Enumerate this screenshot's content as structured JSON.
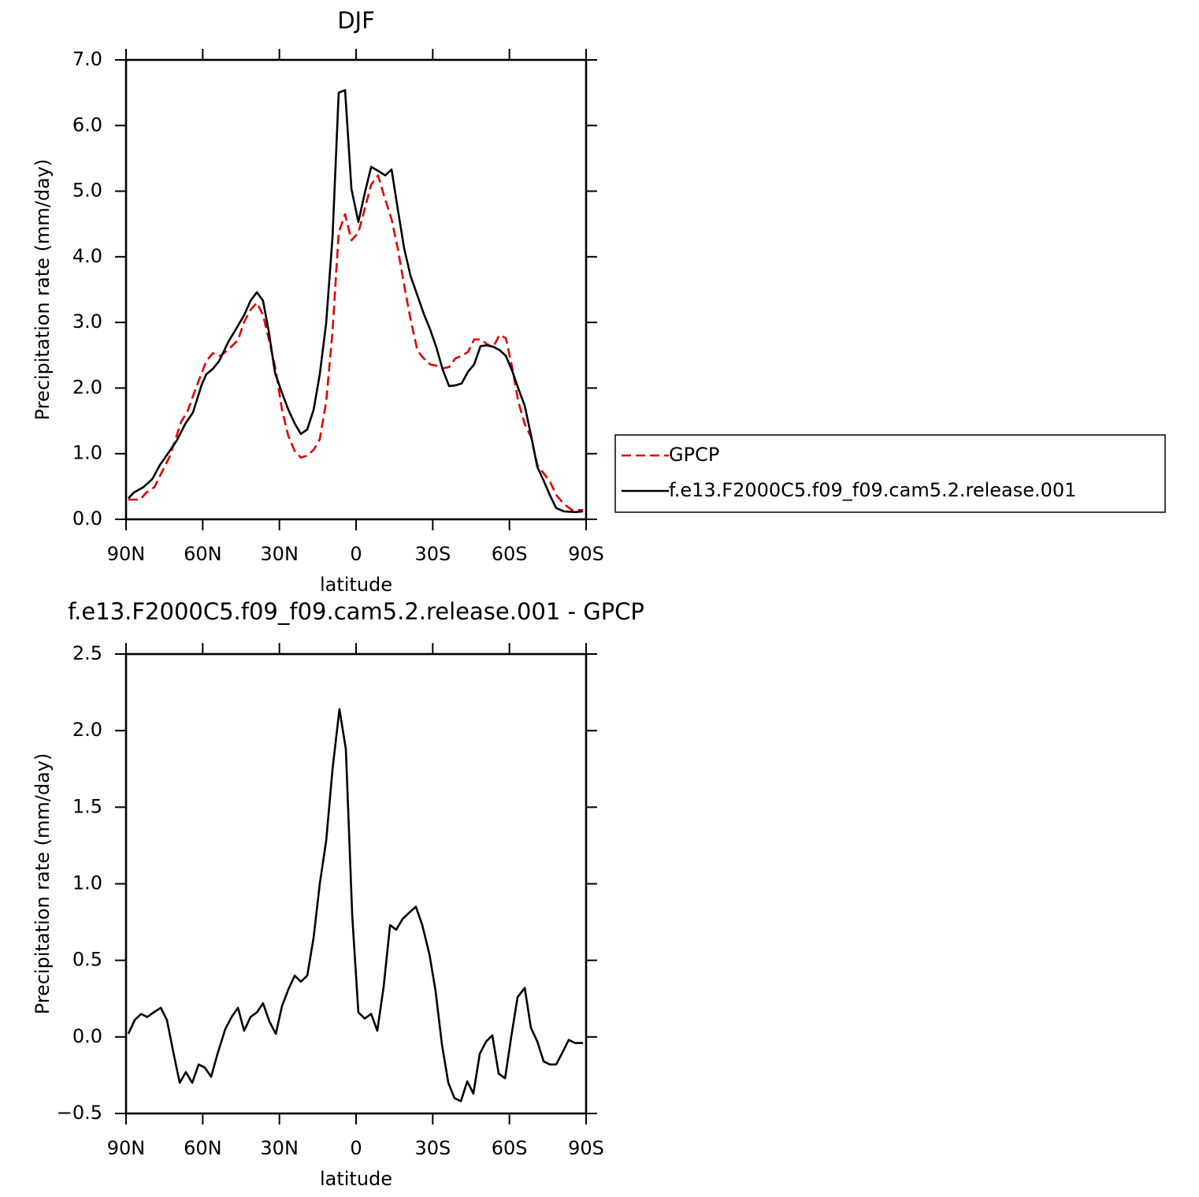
{
  "chart_data": [
    {
      "type": "line",
      "title": "DJF",
      "x_label": "latitude",
      "y_label": "Precipitation rate (mm/day)",
      "xlim": [
        90,
        -90
      ],
      "xticks": [
        {
          "value": 90,
          "label": "90N"
        },
        {
          "value": 60,
          "label": "60N"
        },
        {
          "value": 30,
          "label": "30N"
        },
        0,
        {
          "value": -30,
          "label": "30S"
        },
        {
          "value": -60,
          "label": "60S"
        },
        {
          "value": -90,
          "label": "90S"
        }
      ],
      "ylim": [
        0,
        7
      ],
      "yticks": [
        {
          "value": 0,
          "label": "0.0"
        },
        {
          "value": 1,
          "label": "1.0"
        },
        {
          "value": 2,
          "label": "2.0"
        },
        {
          "value": 3,
          "label": "3.0"
        },
        {
          "value": 4,
          "label": "4.0"
        },
        {
          "value": 5,
          "label": "5.0"
        },
        {
          "value": 6,
          "label": "6.0"
        },
        {
          "value": 7,
          "label": "7.0"
        }
      ],
      "legend": "outside-right",
      "series": [
        {
          "name": "GPCP",
          "color": "#e00000",
          "dash": "dashed",
          "x": [
            89.1,
            84.5,
            82.0,
            78.9,
            76.1,
            73.0,
            70.9,
            68.4,
            66.0,
            63.5,
            61.0,
            58.6,
            56.1,
            53.0,
            49.9,
            46.2,
            43.8,
            41.3,
            38.8,
            36.4,
            33.9,
            31.4,
            29.0,
            26.5,
            24.0,
            21.6,
            19.1,
            16.6,
            14.2,
            11.7,
            9.2,
            6.8,
            4.3,
            1.8,
            -0.9,
            -3.4,
            -5.9,
            -8.6,
            -11.1,
            -13.9,
            -16.3,
            -18.8,
            -21.3,
            -24.0,
            -26.5,
            -29.0,
            -31.4,
            -33.9,
            -36.4,
            -38.8,
            -41.3,
            -43.8,
            -46.2,
            -48.7,
            -51.2,
            -53.6,
            -56.1,
            -58.6,
            -61.0,
            -63.5,
            -66.0,
            -68.5,
            -70.9,
            -73.4,
            -75.8,
            -78.3,
            -81.4,
            -84.5,
            -88.8
          ],
          "values": [
            0.3,
            0.3,
            0.41,
            0.49,
            0.71,
            0.95,
            1.19,
            1.49,
            1.64,
            1.91,
            2.17,
            2.41,
            2.53,
            2.49,
            2.59,
            2.73,
            3.01,
            3.19,
            3.3,
            3.11,
            2.71,
            2.27,
            1.67,
            1.27,
            1.04,
            0.94,
            0.97,
            1.06,
            1.22,
            1.79,
            2.87,
            4.37,
            4.65,
            4.25,
            4.37,
            4.73,
            5.1,
            5.24,
            4.91,
            4.57,
            4.13,
            3.57,
            3.05,
            2.57,
            2.45,
            2.36,
            2.34,
            2.3,
            2.32,
            2.45,
            2.49,
            2.55,
            2.74,
            2.74,
            2.67,
            2.62,
            2.81,
            2.76,
            2.33,
            1.79,
            1.45,
            1.25,
            0.83,
            0.7,
            0.58,
            0.37,
            0.23,
            0.14,
            0.14
          ]
        },
        {
          "name": "f.e13.F2000C5.f09_f09.cam5.2.release.001",
          "color": "#000000",
          "dash": "solid",
          "x": [
            89.1,
            86.9,
            83.2,
            79.8,
            76.7,
            74.0,
            70.0,
            66.9,
            63.8,
            60.4,
            58.6,
            56.1,
            53.6,
            49.9,
            46.8,
            43.8,
            41.3,
            38.8,
            36.4,
            34.2,
            31.7,
            29.0,
            26.5,
            24.0,
            21.6,
            19.1,
            16.6,
            14.2,
            11.7,
            9.2,
            6.8,
            4.3,
            1.8,
            -0.9,
            -3.4,
            -5.9,
            -8.6,
            -11.4,
            -13.9,
            -16.3,
            -18.8,
            -21.3,
            -24.0,
            -26.5,
            -29.0,
            -31.4,
            -33.9,
            -36.4,
            -38.8,
            -41.3,
            -43.8,
            -46.2,
            -48.7,
            -51.2,
            -53.6,
            -56.1,
            -58.6,
            -61.0,
            -63.5,
            -66.0,
            -68.5,
            -70.9,
            -73.4,
            -75.8,
            -78.3,
            -81.4,
            -85.7,
            -88.8
          ],
          "values": [
            0.32,
            0.41,
            0.49,
            0.61,
            0.83,
            0.98,
            1.21,
            1.45,
            1.63,
            2.05,
            2.21,
            2.29,
            2.41,
            2.71,
            2.91,
            3.11,
            3.33,
            3.46,
            3.33,
            2.87,
            2.23,
            1.93,
            1.67,
            1.46,
            1.3,
            1.37,
            1.67,
            2.21,
            2.99,
            4.31,
            6.5,
            6.54,
            5.03,
            4.53,
            4.97,
            5.37,
            5.31,
            5.24,
            5.33,
            4.73,
            4.13,
            3.71,
            3.41,
            3.13,
            2.89,
            2.62,
            2.28,
            2.03,
            2.04,
            2.07,
            2.25,
            2.36,
            2.64,
            2.65,
            2.63,
            2.58,
            2.49,
            2.27,
            1.99,
            1.73,
            1.27,
            0.8,
            0.59,
            0.37,
            0.17,
            0.12,
            0.11,
            0.12
          ]
        }
      ]
    },
    {
      "type": "line",
      "title": "f.e13.F2000C5.f09_f09.cam5.2.release.001 - GPCP",
      "x_label": "latitude",
      "y_label": "Precipitation rate (mm/day)",
      "xlim": [
        90,
        -90
      ],
      "xticks": [
        {
          "value": 90,
          "label": "90N"
        },
        {
          "value": 60,
          "label": "60N"
        },
        {
          "value": 30,
          "label": "30N"
        },
        0,
        {
          "value": -30,
          "label": "30S"
        },
        {
          "value": -60,
          "label": "60S"
        },
        {
          "value": -90,
          "label": "90S"
        }
      ],
      "ylim": [
        -0.5,
        2.5
      ],
      "yticks": [
        {
          "value": -0.5,
          "label": "−0.5"
        },
        {
          "value": 0,
          "label": "0.0"
        },
        0.5,
        {
          "value": 1,
          "label": "1.0"
        },
        1.5,
        {
          "value": 2,
          "label": "2.0"
        },
        2.5
      ],
      "series": [
        {
          "color": "#000000",
          "dash": "solid",
          "x": [
            89.1,
            86.6,
            84.1,
            81.7,
            79.2,
            76.4,
            74.0,
            71.5,
            69.0,
            66.6,
            64.1,
            61.6,
            59.2,
            56.7,
            54.2,
            51.2,
            48.7,
            46.2,
            43.8,
            41.3,
            38.8,
            36.4,
            33.9,
            31.4,
            29.0,
            26.5,
            24.0,
            21.6,
            19.1,
            16.6,
            14.2,
            11.7,
            9.2,
            6.5,
            4.0,
            1.5,
            -0.9,
            -3.4,
            -5.9,
            -8.3,
            -10.8,
            -13.3,
            -15.7,
            -18.2,
            -20.7,
            -23.4,
            -25.9,
            -28.7,
            -31.1,
            -33.6,
            -36.1,
            -38.5,
            -41.0,
            -43.5,
            -45.9,
            -48.4,
            -50.9,
            -53.3,
            -55.8,
            -58.3,
            -60.7,
            -63.2,
            -66.0,
            -68.4,
            -70.9,
            -73.4,
            -75.8,
            -78.3,
            -80.8,
            -83.2,
            -85.7,
            -88.8
          ],
          "values": [
            0.02,
            0.11,
            0.15,
            0.13,
            0.16,
            0.19,
            0.11,
            -0.1,
            -0.3,
            -0.23,
            -0.3,
            -0.18,
            -0.2,
            -0.26,
            -0.11,
            0.05,
            0.13,
            0.19,
            0.04,
            0.13,
            0.16,
            0.22,
            0.1,
            0.02,
            0.2,
            0.31,
            0.4,
            0.36,
            0.4,
            0.65,
            1.0,
            1.28,
            1.75,
            2.14,
            1.88,
            0.79,
            0.16,
            0.12,
            0.15,
            0.04,
            0.33,
            0.73,
            0.7,
            0.77,
            0.81,
            0.85,
            0.73,
            0.54,
            0.3,
            -0.05,
            -0.3,
            -0.4,
            -0.42,
            -0.29,
            -0.37,
            -0.11,
            -0.03,
            0.01,
            -0.24,
            -0.27,
            0.0,
            0.26,
            0.32,
            0.06,
            -0.03,
            -0.16,
            -0.18,
            -0.18,
            -0.1,
            -0.02,
            -0.04,
            -0.04
          ]
        }
      ]
    }
  ]
}
